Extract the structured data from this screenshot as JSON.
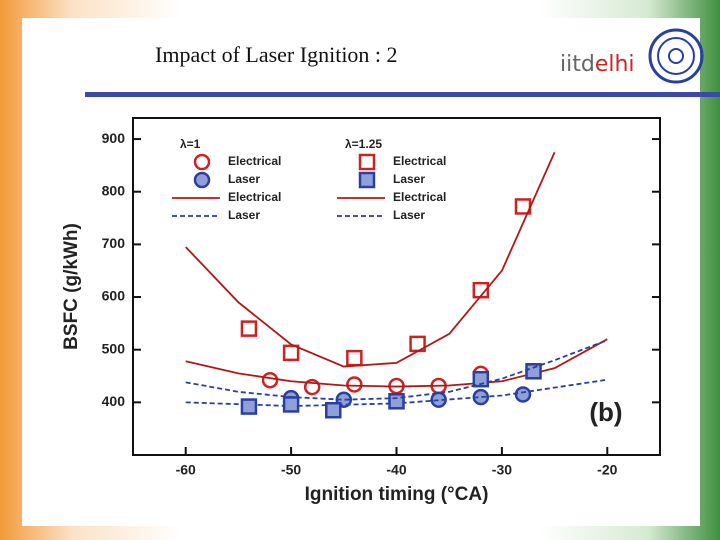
{
  "slide": {
    "title": "Impact of Laser Ignition : 2",
    "logo": [
      "iitd",
      "elhi"
    ]
  },
  "chart_data": {
    "type": "line",
    "x_label": "Ignition timing (°CA)",
    "y_label": "BSFC (g/kWh)",
    "annotation": "(b)",
    "xlim": [
      -65,
      -15
    ],
    "ylim": [
      300,
      940
    ],
    "xticks": [
      -60,
      -50,
      -40,
      -30,
      -20
    ],
    "yticks": [
      400,
      500,
      600,
      700,
      800,
      900
    ],
    "groups": [
      {
        "title": "λ=1",
        "series": [
          {
            "name": "Electrical",
            "color": "#cc2222",
            "marker": "circle",
            "x": [
              -52,
              -48,
              -44,
              -40,
              -36,
              -32
            ],
            "values": [
              442,
              429,
              434,
              431,
              431,
              454
            ]
          },
          {
            "name": "Laser",
            "color": "#2a3f9f",
            "marker": "circle",
            "x": [
              -50,
              -45,
              -40,
              -36,
              -32,
              -28
            ],
            "values": [
              408,
              405,
              402,
              405,
              410,
              415
            ]
          },
          {
            "name": "Electrical",
            "color": "#b01818",
            "line": "solid",
            "x": [
              -60,
              -55,
              -50,
              -45,
              -40,
              -35,
              -30,
              -25,
              -20
            ],
            "values": [
              478,
              455,
              440,
              432,
              430,
              432,
              440,
              465,
              520
            ]
          },
          {
            "name": "Laser",
            "color": "#2a3f9f",
            "line": "dashed",
            "x": [
              -60,
              -50,
              -40,
              -30,
              -20
            ],
            "values": [
              400,
              393,
              398,
              413,
              443
            ]
          }
        ]
      },
      {
        "title": "λ=1.25",
        "series": [
          {
            "name": "Electrical",
            "color": "#cc2222",
            "marker": "square",
            "x": [
              -54,
              -50,
              -44,
              -38,
              -32,
              -28
            ],
            "values": [
              540,
              494,
              484,
              511,
              613,
              772
            ]
          },
          {
            "name": "Laser",
            "color": "#2a3f9f",
            "marker": "square",
            "x": [
              -54,
              -50,
              -46,
              -40,
              -32,
              -27
            ],
            "values": [
              392,
              396,
              385,
              402,
              444,
              459
            ]
          },
          {
            "name": "Electrical",
            "color": "#b01818",
            "line": "solid",
            "x": [
              -60,
              -55,
              -50,
              -45,
              -40,
              -35,
              -30,
              -25
            ],
            "values": [
              695,
              590,
              510,
              468,
              475,
              530,
              650,
              875
            ]
          },
          {
            "name": "Laser",
            "color": "#2a3f9f",
            "line": "dashed",
            "x": [
              -60,
              -55,
              -50,
              -45,
              -40,
              -35,
              -30,
              -25,
              -20
            ],
            "values": [
              438,
              420,
              410,
              405,
              408,
              420,
              445,
              480,
              518
            ]
          }
        ]
      }
    ]
  }
}
